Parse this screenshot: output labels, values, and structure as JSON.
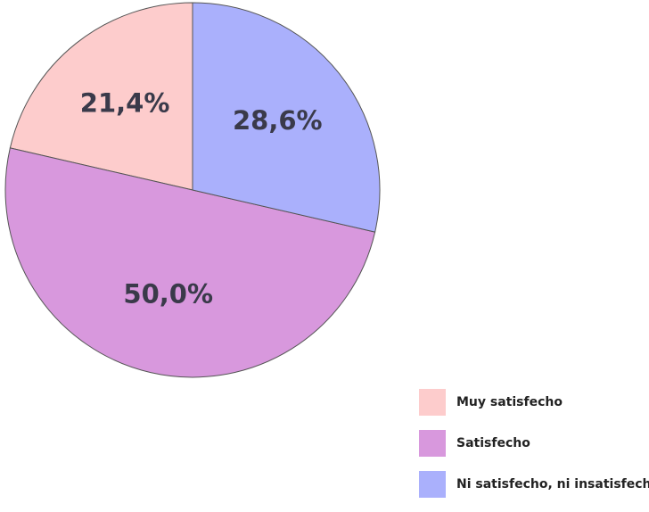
{
  "chart_data": {
    "type": "pie",
    "title": "",
    "slices": [
      {
        "label": "Muy satisfecho",
        "value": 21.4,
        "display": "21,4%",
        "color": "#fdcccc"
      },
      {
        "label": "Satisfecho",
        "value": 50.0,
        "display": "50,0%",
        "color": "#d898dd"
      },
      {
        "label": "Ni satisfecho, ni insatisfecho",
        "value": 28.6,
        "display": "28,6%",
        "color": "#aab0fc"
      }
    ],
    "legend_position": "bottom-right",
    "start_angle": "12 o'clock",
    "direction": "counter-clockwise"
  }
}
